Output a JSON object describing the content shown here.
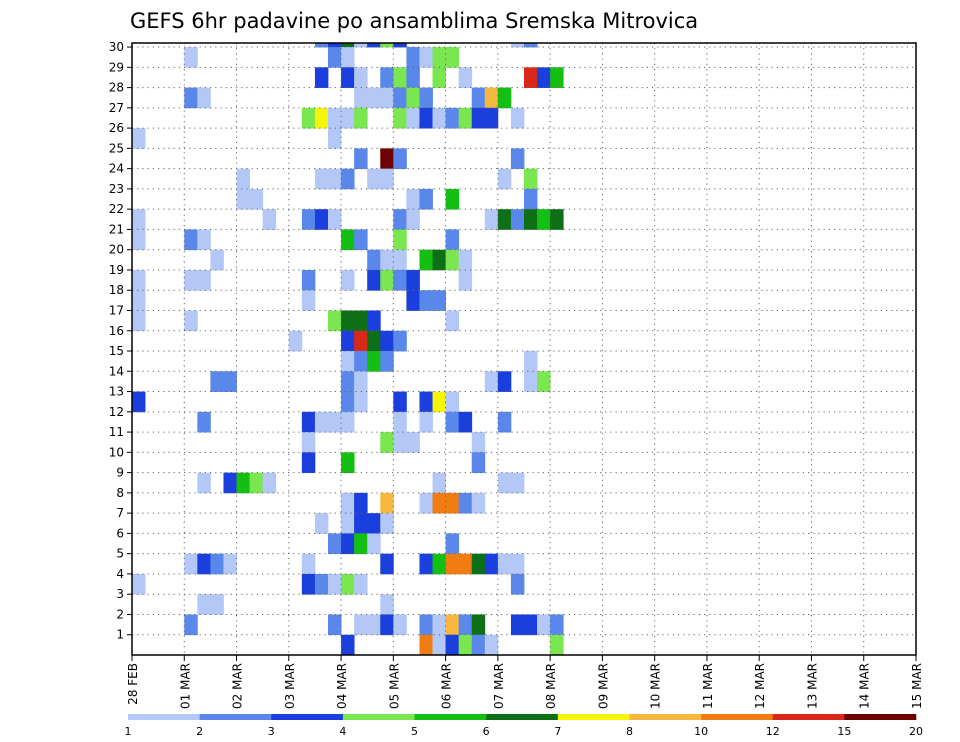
{
  "chart_data": {
    "type": "heatmap",
    "title": "GEFS 6hr padavine po ansamblima Sremska Mitrovica",
    "xlabel": "",
    "ylabel": "",
    "x_labels": [
      "28 FEB",
      "01 MAR",
      "02 MAR",
      "03 MAR",
      "04 MAR",
      "05 MAR",
      "06 MAR",
      "07 MAR",
      "08 MAR",
      "09 MAR",
      "10 MAR",
      "11 MAR",
      "12 MAR",
      "13 MAR",
      "14 MAR",
      "15 MAR"
    ],
    "y_labels": [
      "1",
      "2",
      "3",
      "4",
      "5",
      "6",
      "7",
      "8",
      "9",
      "10",
      "11",
      "12",
      "13",
      "14",
      "15",
      "16",
      "17",
      "18",
      "19",
      "20",
      "21",
      "22",
      "23",
      "24",
      "25",
      "26",
      "27",
      "28",
      "29",
      "30"
    ],
    "steps_per_day": 4,
    "ylim": [
      0,
      30
    ],
    "grid": true,
    "legend": {
      "placement": "bottom",
      "labels": [
        "1",
        "2",
        "3",
        "4",
        "5",
        "6",
        "7",
        "8",
        "10",
        "12",
        "15",
        "20"
      ],
      "colors": [
        "#b4c8f8",
        "#5a88ea",
        "#1a3fdc",
        "#7ae650",
        "#12bf12",
        "#0d7016",
        "#f5f50a",
        "#f7b840",
        "#f07c12",
        "#d8281a",
        "#700000"
      ]
    },
    "cells": [
      [
        30,
        14,
        2
      ],
      [
        30,
        15,
        3
      ],
      [
        30,
        16,
        6
      ],
      [
        30,
        17,
        1
      ],
      [
        30,
        18,
        3
      ],
      [
        30,
        19,
        4
      ],
      [
        30,
        20,
        3
      ],
      [
        30,
        29,
        1
      ],
      [
        30,
        30,
        2
      ],
      [
        29,
        4,
        1
      ],
      [
        29,
        15,
        2
      ],
      [
        29,
        16,
        1
      ],
      [
        29,
        21,
        2
      ],
      [
        29,
        22,
        1
      ],
      [
        29,
        23,
        4
      ],
      [
        29,
        24,
        4
      ],
      [
        28,
        14,
        3
      ],
      [
        28,
        16,
        3
      ],
      [
        28,
        17,
        1
      ],
      [
        28,
        19,
        2
      ],
      [
        28,
        20,
        4
      ],
      [
        28,
        21,
        2
      ],
      [
        28,
        23,
        4
      ],
      [
        28,
        25,
        1
      ],
      [
        28,
        30,
        10
      ],
      [
        28,
        31,
        3
      ],
      [
        28,
        32,
        5
      ],
      [
        27,
        4,
        2
      ],
      [
        27,
        5,
        1
      ],
      [
        27,
        17,
        1
      ],
      [
        27,
        18,
        1
      ],
      [
        27,
        19,
        1
      ],
      [
        27,
        20,
        2
      ],
      [
        27,
        21,
        4
      ],
      [
        27,
        22,
        2
      ],
      [
        27,
        26,
        2
      ],
      [
        27,
        27,
        8
      ],
      [
        27,
        28,
        5
      ],
      [
        26,
        13,
        4
      ],
      [
        26,
        14,
        7
      ],
      [
        26,
        15,
        1
      ],
      [
        26,
        16,
        1
      ],
      [
        26,
        17,
        4
      ],
      [
        26,
        20,
        4
      ],
      [
        26,
        21,
        1
      ],
      [
        26,
        22,
        3
      ],
      [
        26,
        23,
        1
      ],
      [
        26,
        24,
        2
      ],
      [
        26,
        25,
        4
      ],
      [
        26,
        26,
        3
      ],
      [
        26,
        27,
        3
      ],
      [
        26,
        29,
        1
      ],
      [
        25,
        0,
        1
      ],
      [
        25,
        15,
        1
      ],
      [
        24,
        17,
        2
      ],
      [
        24,
        19,
        11
      ],
      [
        24,
        20,
        2
      ],
      [
        24,
        29,
        2
      ],
      [
        23,
        8,
        1
      ],
      [
        23,
        14,
        1
      ],
      [
        23,
        15,
        1
      ],
      [
        23,
        16,
        2
      ],
      [
        23,
        18,
        1
      ],
      [
        23,
        19,
        1
      ],
      [
        23,
        28,
        1
      ],
      [
        23,
        30,
        4
      ],
      [
        22,
        8,
        1
      ],
      [
        22,
        9,
        1
      ],
      [
        22,
        21,
        1
      ],
      [
        22,
        22,
        2
      ],
      [
        22,
        24,
        5
      ],
      [
        22,
        30,
        2
      ],
      [
        21,
        0,
        1
      ],
      [
        21,
        10,
        1
      ],
      [
        21,
        13,
        2
      ],
      [
        21,
        14,
        3
      ],
      [
        21,
        15,
        1
      ],
      [
        21,
        20,
        2
      ],
      [
        21,
        21,
        1
      ],
      [
        21,
        27,
        1
      ],
      [
        21,
        28,
        6
      ],
      [
        21,
        29,
        2
      ],
      [
        21,
        30,
        6
      ],
      [
        21,
        31,
        5
      ],
      [
        21,
        32,
        6
      ],
      [
        20,
        0,
        1
      ],
      [
        20,
        4,
        2
      ],
      [
        20,
        5,
        1
      ],
      [
        20,
        16,
        5
      ],
      [
        20,
        17,
        2
      ],
      [
        20,
        20,
        4
      ],
      [
        20,
        24,
        2
      ],
      [
        19,
        6,
        1
      ],
      [
        19,
        18,
        2
      ],
      [
        19,
        19,
        1
      ],
      [
        19,
        20,
        1
      ],
      [
        19,
        22,
        5
      ],
      [
        19,
        23,
        6
      ],
      [
        19,
        24,
        4
      ],
      [
        19,
        25,
        1
      ],
      [
        18,
        0,
        1
      ],
      [
        18,
        4,
        1
      ],
      [
        18,
        5,
        1
      ],
      [
        18,
        13,
        2
      ],
      [
        18,
        16,
        1
      ],
      [
        18,
        18,
        3
      ],
      [
        18,
        19,
        4
      ],
      [
        18,
        20,
        2
      ],
      [
        18,
        21,
        3
      ],
      [
        18,
        25,
        1
      ],
      [
        17,
        0,
        1
      ],
      [
        17,
        13,
        1
      ],
      [
        17,
        21,
        3
      ],
      [
        17,
        22,
        2
      ],
      [
        17,
        23,
        2
      ],
      [
        16,
        0,
        1
      ],
      [
        16,
        4,
        1
      ],
      [
        16,
        15,
        4
      ],
      [
        16,
        16,
        6
      ],
      [
        16,
        17,
        6
      ],
      [
        16,
        18,
        3
      ],
      [
        16,
        24,
        1
      ],
      [
        15,
        12,
        1
      ],
      [
        15,
        16,
        3
      ],
      [
        15,
        17,
        10
      ],
      [
        15,
        18,
        6
      ],
      [
        15,
        19,
        3
      ],
      [
        15,
        20,
        2
      ],
      [
        14,
        16,
        1
      ],
      [
        14,
        17,
        2
      ],
      [
        14,
        18,
        5
      ],
      [
        14,
        19,
        2
      ],
      [
        14,
        30,
        1
      ],
      [
        13,
        6,
        2
      ],
      [
        13,
        7,
        2
      ],
      [
        13,
        16,
        2
      ],
      [
        13,
        17,
        1
      ],
      [
        13,
        27,
        1
      ],
      [
        13,
        28,
        3
      ],
      [
        13,
        30,
        1
      ],
      [
        13,
        31,
        4
      ],
      [
        12,
        0,
        3
      ],
      [
        12,
        16,
        2
      ],
      [
        12,
        17,
        1
      ],
      [
        12,
        20,
        3
      ],
      [
        12,
        22,
        3
      ],
      [
        12,
        23,
        7
      ],
      [
        12,
        24,
        1
      ],
      [
        11,
        5,
        2
      ],
      [
        11,
        13,
        3
      ],
      [
        11,
        14,
        1
      ],
      [
        11,
        15,
        1
      ],
      [
        11,
        16,
        1
      ],
      [
        11,
        20,
        1
      ],
      [
        11,
        22,
        1
      ],
      [
        11,
        24,
        2
      ],
      [
        11,
        25,
        3
      ],
      [
        11,
        28,
        2
      ],
      [
        10,
        13,
        1
      ],
      [
        10,
        19,
        4
      ],
      [
        10,
        20,
        1
      ],
      [
        10,
        21,
        1
      ],
      [
        10,
        26,
        1
      ],
      [
        9,
        13,
        3
      ],
      [
        9,
        16,
        5
      ],
      [
        9,
        26,
        2
      ],
      [
        8,
        5,
        1
      ],
      [
        8,
        7,
        3
      ],
      [
        8,
        8,
        5
      ],
      [
        8,
        9,
        4
      ],
      [
        8,
        10,
        1
      ],
      [
        8,
        23,
        1
      ],
      [
        8,
        28,
        1
      ],
      [
        8,
        29,
        1
      ],
      [
        7,
        16,
        1
      ],
      [
        7,
        17,
        3
      ],
      [
        7,
        19,
        8
      ],
      [
        7,
        22,
        1
      ],
      [
        7,
        23,
        9
      ],
      [
        7,
        24,
        9
      ],
      [
        7,
        25,
        2
      ],
      [
        7,
        26,
        1
      ],
      [
        6,
        14,
        1
      ],
      [
        6,
        16,
        1
      ],
      [
        6,
        17,
        3
      ],
      [
        6,
        18,
        3
      ],
      [
        6,
        19,
        1
      ],
      [
        5,
        15,
        2
      ],
      [
        5,
        16,
        3
      ],
      [
        5,
        17,
        5
      ],
      [
        5,
        18,
        1
      ],
      [
        5,
        24,
        2
      ],
      [
        4,
        4,
        1
      ],
      [
        4,
        5,
        3
      ],
      [
        4,
        6,
        2
      ],
      [
        4,
        7,
        1
      ],
      [
        4,
        13,
        1
      ],
      [
        4,
        19,
        3
      ],
      [
        4,
        22,
        3
      ],
      [
        4,
        23,
        5
      ],
      [
        4,
        24,
        9
      ],
      [
        4,
        25,
        9
      ],
      [
        4,
        26,
        6
      ],
      [
        4,
        27,
        3
      ],
      [
        4,
        28,
        1
      ],
      [
        4,
        29,
        1
      ],
      [
        3,
        0,
        1
      ],
      [
        3,
        13,
        3
      ],
      [
        3,
        14,
        2
      ],
      [
        3,
        15,
        1
      ],
      [
        3,
        16,
        4
      ],
      [
        3,
        17,
        1
      ],
      [
        3,
        29,
        2
      ],
      [
        2,
        5,
        1
      ],
      [
        2,
        6,
        1
      ],
      [
        2,
        19,
        1
      ],
      [
        1,
        4,
        2
      ],
      [
        1,
        15,
        2
      ],
      [
        1,
        17,
        1
      ],
      [
        1,
        18,
        1
      ],
      [
        1,
        19,
        3
      ],
      [
        1,
        20,
        1
      ],
      [
        1,
        22,
        2
      ],
      [
        1,
        23,
        1
      ],
      [
        1,
        24,
        8
      ],
      [
        1,
        25,
        2
      ],
      [
        1,
        26,
        6
      ],
      [
        1,
        29,
        3
      ],
      [
        1,
        30,
        3
      ],
      [
        1,
        31,
        1
      ],
      [
        1,
        32,
        2
      ],
      [
        0,
        16,
        3
      ],
      [
        0,
        22,
        9
      ],
      [
        0,
        23,
        1
      ],
      [
        0,
        24,
        3
      ],
      [
        0,
        25,
        4
      ],
      [
        0,
        26,
        2
      ],
      [
        0,
        27,
        1
      ],
      [
        0,
        32,
        4
      ]
    ]
  }
}
